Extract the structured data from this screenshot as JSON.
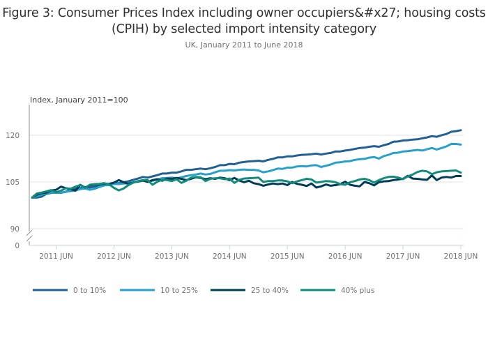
{
  "chart_data": {
    "type": "line",
    "title": "Figure 3: Consumer Prices Index including owner occupiers&#x27; housing costs (CPIH) by selected import intensity category",
    "subtitle": "UK, January 2011 to June 2018",
    "ylabel": "Index, January 2011=100",
    "xlabel": "",
    "ylim": [
      90,
      125
    ],
    "y_axis_break": true,
    "y_ticks": [
      "90",
      "105",
      "120"
    ],
    "y_tick_values": [
      90,
      105,
      120
    ],
    "y_break_label": "0",
    "x_start": "2011 JAN",
    "x_end": "2018 JUN",
    "x_tick_labels": [
      "2011 JUN",
      "2012 JUN",
      "2013 JUN",
      "2014 JUN",
      "2015 JUN",
      "2016 JUN",
      "2017 JUN",
      "2018 JUN"
    ],
    "x_tick_months": [
      5,
      17,
      29,
      41,
      53,
      65,
      77,
      89
    ],
    "grid": true,
    "legend_position": "bottom",
    "series": [
      {
        "name": "0 to 10%",
        "color": "#206095",
        "values": [
          100.0,
          100.0,
          100.3,
          101.2,
          101.5,
          101.6,
          101.5,
          101.9,
          102.5,
          102.8,
          103.0,
          103.4,
          103.2,
          103.5,
          103.9,
          104.2,
          104.3,
          104.6,
          104.6,
          104.9,
          105.2,
          105.7,
          106.1,
          106.6,
          106.4,
          106.8,
          107.2,
          107.7,
          107.7,
          108.0,
          108.0,
          108.4,
          108.9,
          108.9,
          109.1,
          109.3,
          109.1,
          109.4,
          109.8,
          110.4,
          110.4,
          110.8,
          110.7,
          111.2,
          111.4,
          111.6,
          111.7,
          111.8,
          111.6,
          112.1,
          112.4,
          112.9,
          112.9,
          113.2,
          113.2,
          113.5,
          113.7,
          113.8,
          113.9,
          114.1,
          113.8,
          114.1,
          114.3,
          114.8,
          114.8,
          115.1,
          115.3,
          115.6,
          115.9,
          116.0,
          116.3,
          116.5,
          116.3,
          116.8,
          117.2,
          117.9,
          118.0,
          118.3,
          118.4,
          118.6,
          118.7,
          119.0,
          119.3,
          119.7,
          119.5,
          120.0,
          120.4,
          121.1,
          121.3,
          121.6
        ]
      },
      {
        "name": "10 to 25%",
        "color": "#27a0cc",
        "values": [
          100.0,
          100.4,
          100.9,
          101.4,
          101.6,
          101.6,
          101.6,
          101.8,
          102.1,
          102.3,
          102.7,
          102.9,
          102.5,
          102.8,
          103.4,
          103.9,
          104.0,
          104.4,
          104.3,
          104.5,
          104.6,
          104.9,
          105.1,
          105.4,
          105.1,
          105.4,
          105.8,
          106.2,
          106.3,
          106.4,
          106.2,
          106.5,
          106.9,
          107.2,
          107.4,
          107.7,
          107.4,
          107.6,
          108.1,
          108.6,
          108.6,
          108.8,
          108.7,
          108.9,
          109.0,
          108.9,
          108.9,
          108.7,
          108.1,
          108.4,
          108.8,
          109.3,
          109.2,
          109.6,
          109.6,
          110.0,
          110.1,
          110.0,
          110.3,
          110.4,
          109.8,
          110.2,
          110.6,
          111.2,
          111.3,
          111.6,
          111.7,
          112.1,
          112.3,
          112.4,
          112.8,
          113.0,
          112.5,
          113.3,
          113.7,
          114.3,
          114.4,
          114.8,
          114.9,
          115.1,
          115.3,
          115.1,
          115.5,
          115.9,
          115.4,
          115.9,
          116.4,
          117.2,
          117.2,
          117.0
        ]
      },
      {
        "name": "25 to 40%",
        "color": "#003c57",
        "values": [
          100.0,
          100.9,
          101.4,
          101.6,
          102.3,
          102.5,
          103.5,
          103.0,
          102.7,
          102.2,
          104.1,
          103.2,
          103.9,
          104.2,
          104.2,
          104.4,
          104.4,
          104.8,
          105.6,
          104.9,
          104.4,
          104.8,
          105.2,
          105.5,
          105.0,
          105.6,
          105.9,
          105.4,
          106.1,
          106.0,
          106.3,
          106.0,
          105.6,
          106.0,
          106.5,
          106.3,
          105.9,
          106.2,
          106.0,
          106.4,
          106.2,
          105.6,
          106.3,
          105.5,
          104.9,
          105.4,
          104.6,
          104.3,
          103.8,
          104.2,
          104.5,
          104.3,
          104.5,
          104.0,
          105.0,
          104.4,
          104.1,
          103.7,
          104.5,
          103.2,
          103.6,
          104.2,
          103.8,
          104.0,
          104.3,
          105.1,
          104.1,
          103.8,
          103.6,
          105.0,
          104.6,
          103.9,
          104.9,
          105.2,
          105.3,
          105.6,
          105.8,
          106.0,
          107.0,
          106.1,
          106.0,
          105.8,
          105.7,
          107.1,
          105.6,
          106.4,
          106.6,
          106.4,
          106.9,
          106.9
        ]
      },
      {
        "name": "40% plus",
        "color": "#118c7b",
        "values": [
          100.0,
          101.3,
          101.6,
          102.0,
          102.4,
          101.7,
          102.2,
          103.0,
          102.8,
          103.5,
          104.0,
          103.1,
          104.1,
          104.3,
          104.4,
          104.6,
          104.2,
          103.1,
          102.3,
          102.9,
          104.0,
          104.8,
          105.3,
          105.6,
          105.6,
          104.1,
          105.1,
          105.7,
          105.6,
          105.3,
          105.9,
          104.7,
          105.4,
          106.4,
          106.6,
          106.5,
          105.3,
          106.0,
          106.2,
          106.2,
          105.9,
          106.1,
          104.7,
          105.7,
          106.1,
          106.2,
          106.3,
          106.4,
          105.0,
          105.3,
          105.3,
          105.5,
          105.5,
          105.2,
          104.6,
          105.2,
          105.6,
          106.0,
          105.8,
          104.8,
          105.0,
          105.3,
          105.2,
          104.9,
          104.3,
          104.1,
          104.9,
          105.3,
          105.8,
          106.0,
          105.6,
          104.8,
          105.6,
          106.2,
          106.6,
          106.7,
          106.4,
          105.9,
          106.8,
          107.4,
          108.2,
          108.6,
          108.4,
          107.5,
          108.1,
          108.4,
          108.5,
          108.6,
          108.7,
          108.0
        ]
      }
    ]
  }
}
